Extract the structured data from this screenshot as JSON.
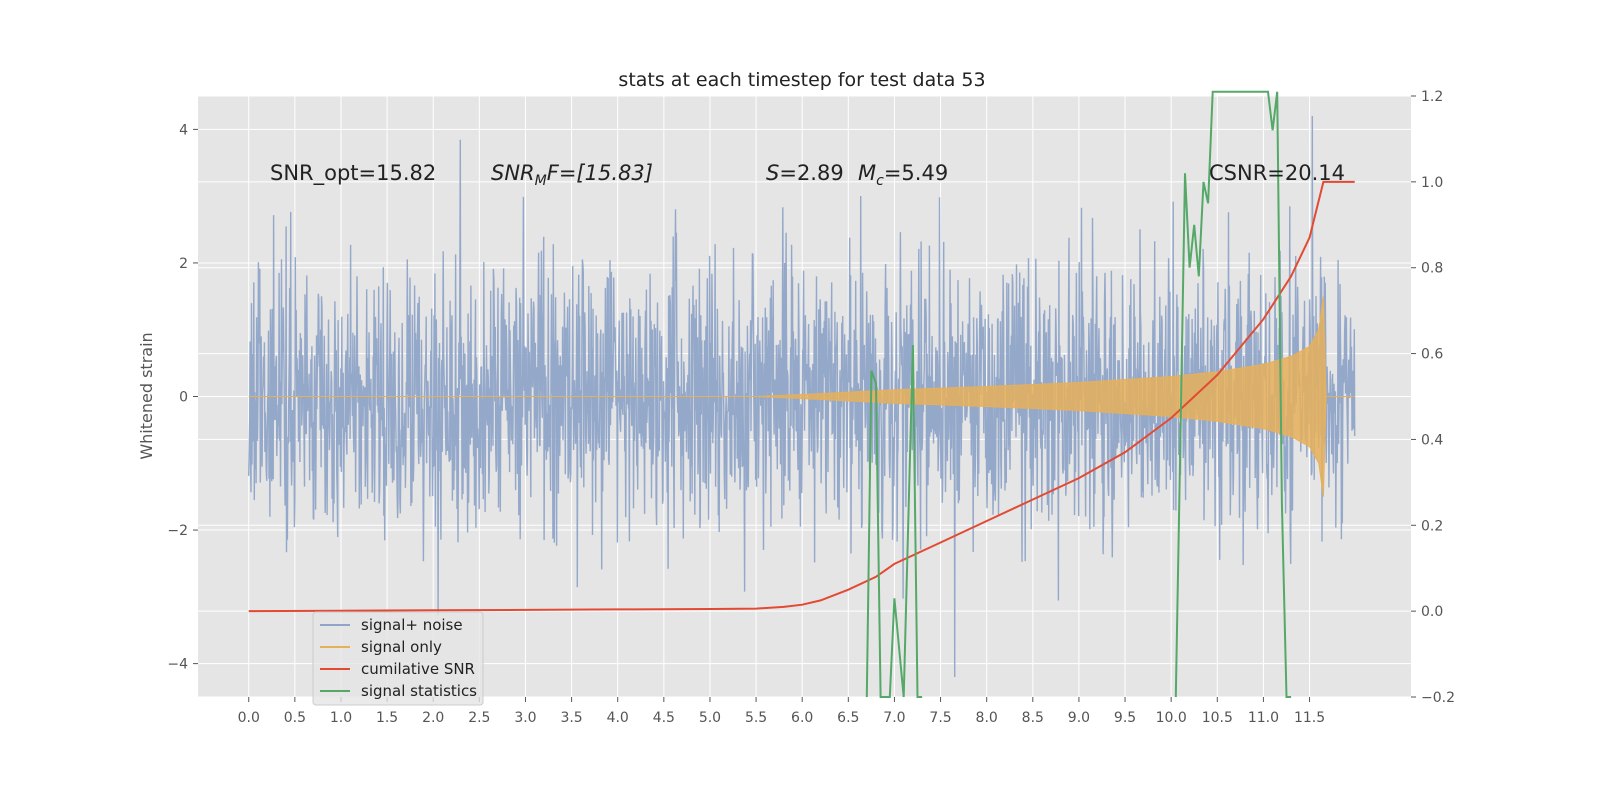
{
  "chart_data": {
    "type": "line",
    "title": "stats at each timestep for test data 53",
    "xlabel": "",
    "ylabel": "Whitened strain",
    "y2label": "",
    "xlim": [
      -0.55,
      12.6
    ],
    "ylim": [
      -4.5,
      4.5
    ],
    "y2lim": [
      -0.2,
      1.2
    ],
    "xticks": [
      "0.0",
      "0.5",
      "1.0",
      "1.5",
      "2.0",
      "2.5",
      "3.0",
      "3.5",
      "4.0",
      "4.5",
      "5.0",
      "5.5",
      "6.0",
      "6.5",
      "7.0",
      "7.5",
      "8.0",
      "8.5",
      "9.0",
      "9.5",
      "10.0",
      "10.5",
      "11.0",
      "11.5"
    ],
    "yticks": [
      "4",
      "2",
      "0",
      "−2",
      "−4"
    ],
    "y2ticks": [
      "1.2",
      "1.0",
      "0.8",
      "0.6",
      "0.4",
      "0.2",
      "0.0",
      "−0.2"
    ],
    "grid": true,
    "legend_position": "lower-left",
    "colors": {
      "plot_bg": "#e5e5e5",
      "grid": "#ffffff",
      "signal_noise": "#8fa4c8",
      "signal_only": "#e6b05a",
      "cumulative_snr": "#e24a33",
      "signal_statistics": "#55a868"
    },
    "series": [
      {
        "name": "signal+ noise",
        "axis": "left",
        "description_values": {
          "t_start": 0.0,
          "t_end": 11.99,
          "typical_amplitude": 1.3,
          "peak_amplitude": 4.2
        }
      },
      {
        "name": "signal only",
        "axis": "left",
        "envelope": {
          "x": [
            0.0,
            5.5,
            6.0,
            7.0,
            8.0,
            9.0,
            10.0,
            10.5,
            11.0,
            11.3,
            11.5,
            11.6,
            11.65,
            11.68,
            11.99
          ],
          "y": [
            0.0,
            0.0,
            0.03,
            0.1,
            0.15,
            0.21,
            0.3,
            0.37,
            0.48,
            0.6,
            0.75,
            1.0,
            1.5,
            0.0,
            0.0
          ]
        }
      },
      {
        "name": "cumilative SNR",
        "axis": "right",
        "x": [
          0.0,
          1.0,
          2.0,
          3.0,
          4.0,
          5.0,
          5.5,
          5.8,
          6.0,
          6.2,
          6.5,
          6.8,
          7.0,
          7.5,
          8.0,
          8.5,
          9.0,
          9.5,
          10.0,
          10.5,
          11.0,
          11.3,
          11.5,
          11.65,
          11.99
        ],
        "y": [
          0.0,
          0.001,
          0.002,
          0.003,
          0.004,
          0.005,
          0.006,
          0.01,
          0.015,
          0.025,
          0.05,
          0.08,
          0.11,
          0.16,
          0.21,
          0.26,
          0.31,
          0.37,
          0.45,
          0.55,
          0.68,
          0.78,
          0.87,
          1.0,
          1.0
        ]
      },
      {
        "name": "signal statistics",
        "axis": "right",
        "x": [
          6.7,
          6.75,
          6.8,
          6.85,
          6.9,
          6.95,
          7.0,
          7.1,
          7.2,
          7.25,
          7.3,
          10.05,
          10.1,
          10.15,
          10.2,
          10.25,
          10.3,
          10.35,
          10.4,
          10.45,
          10.5,
          11.05,
          11.1,
          11.15,
          11.2,
          11.25,
          11.3
        ],
        "y": [
          -0.2,
          0.56,
          0.53,
          -0.2,
          -0.2,
          -0.2,
          0.03,
          -0.2,
          0.62,
          -0.2,
          -0.2,
          -0.2,
          0.4,
          1.02,
          0.8,
          0.9,
          0.78,
          1.0,
          0.95,
          1.25,
          1.25,
          1.25,
          1.12,
          1.25,
          0.25,
          -0.2,
          -0.2
        ]
      }
    ],
    "annotations": [
      {
        "id": "snr_opt",
        "text": "SNR_opt=15.82"
      },
      {
        "id": "snr_mf_prefix",
        "text": "SNR"
      },
      {
        "id": "snr_mf_sub",
        "text": "M"
      },
      {
        "id": "snr_mf_suffix",
        "text": "F=[15.83]"
      },
      {
        "id": "s_label",
        "text": "S"
      },
      {
        "id": "s_value",
        "text": "=2.89"
      },
      {
        "id": "mc_label",
        "text": "M"
      },
      {
        "id": "mc_sub",
        "text": "c"
      },
      {
        "id": "mc_value",
        "text": "=5.49"
      },
      {
        "id": "csnr",
        "text": "CSNR=20.14"
      }
    ],
    "legend": [
      {
        "label": "signal+ noise",
        "series": "signal_noise"
      },
      {
        "label": "signal only",
        "series": "signal_only"
      },
      {
        "label": "cumilative SNR",
        "series": "cumulative_snr"
      },
      {
        "label": "signal statistics",
        "series": "signal_statistics"
      }
    ]
  }
}
